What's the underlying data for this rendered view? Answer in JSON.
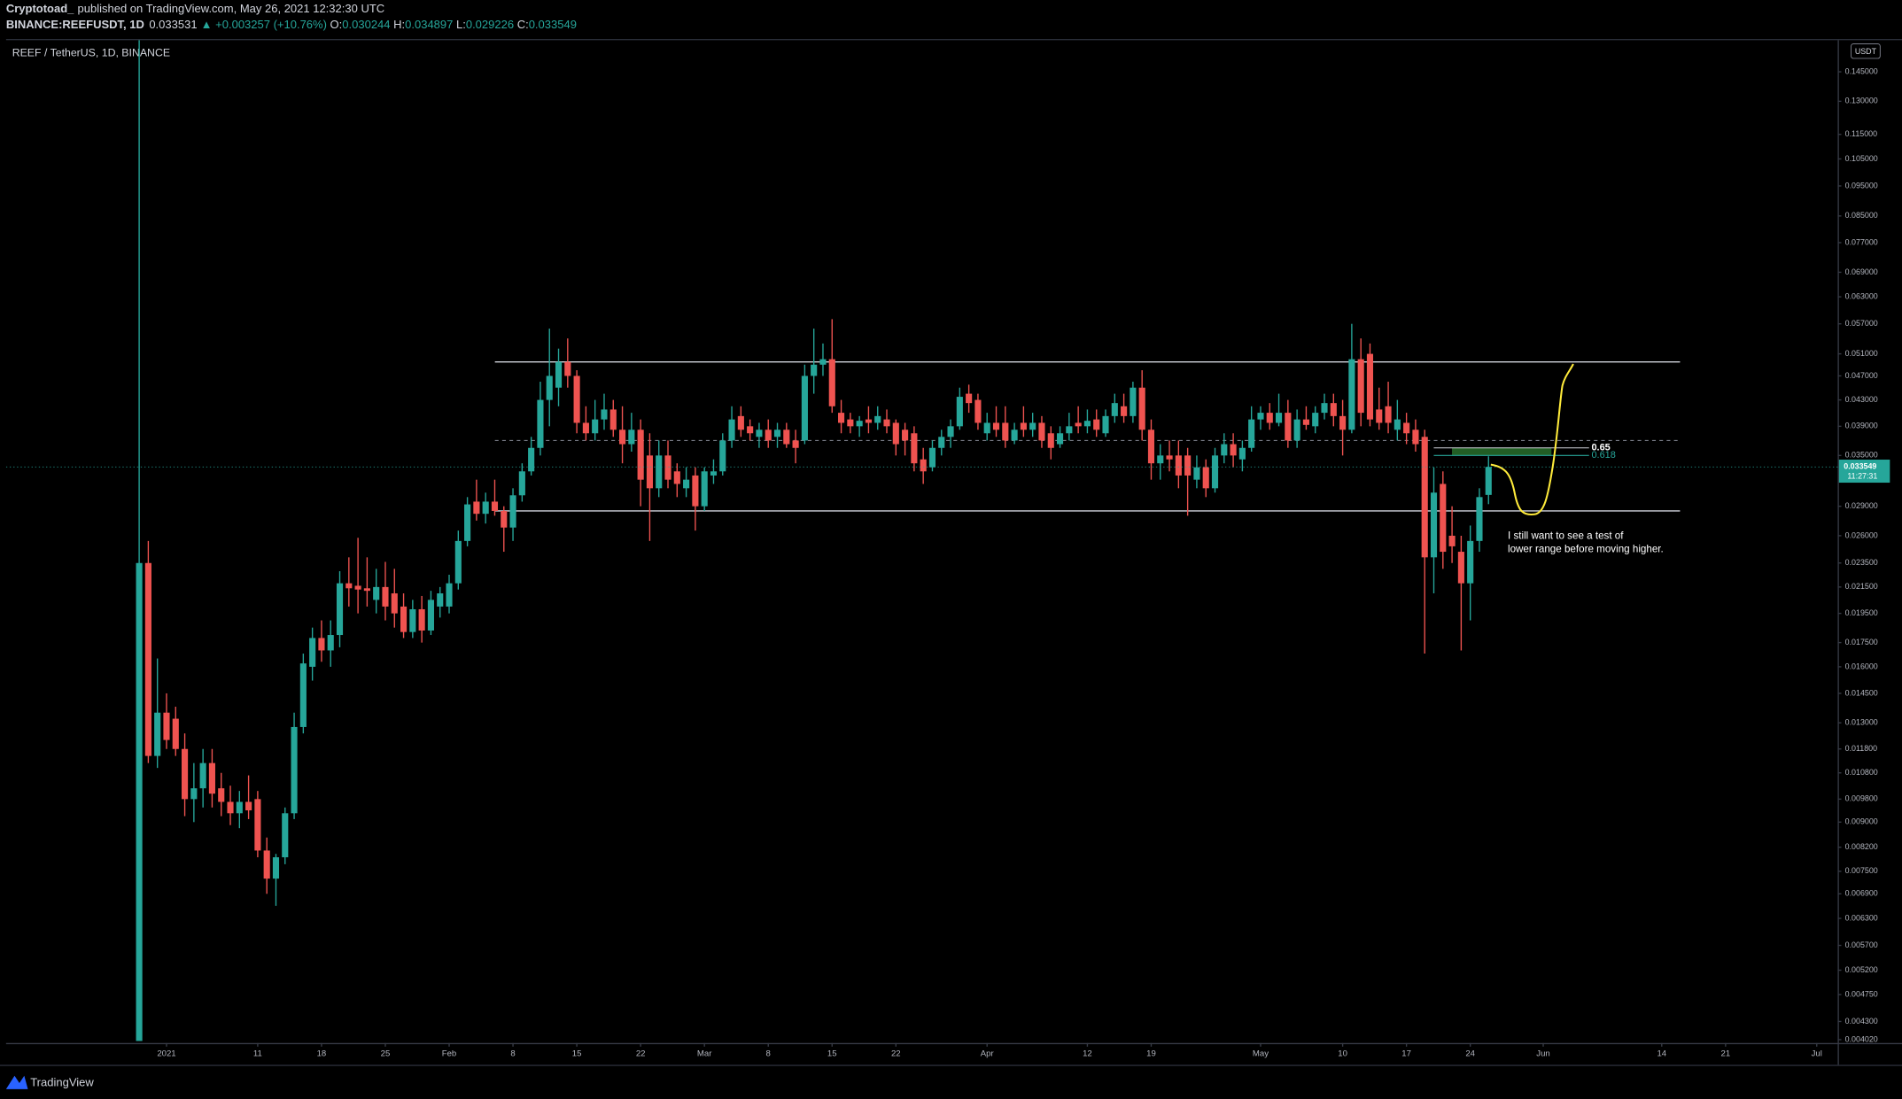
{
  "header": {
    "author": "Cryptotoad_",
    "published": "published on TradingView.com, May 26, 2021 12:32:30 UTC",
    "symbol": "BINANCE:REEFUSDT, 1D",
    "last": "0.033531",
    "change": "▲ +0.003257 (+10.76%)",
    "ohlc": [
      {
        "k": "O:",
        "v": "0.030244"
      },
      {
        "k": "H:",
        "v": "0.034897"
      },
      {
        "k": "L:",
        "v": "0.029226"
      },
      {
        "k": "C:",
        "v": "0.033549"
      }
    ]
  },
  "footer": {
    "brand": "TradingView"
  },
  "chart_data": {
    "type": "candlestick",
    "title": "REEF / TetherUS, 1D, BINANCE",
    "currency": "USDT",
    "up_color": "#26a69a",
    "down_color": "#ef5350",
    "log_scale": true,
    "grid": false,
    "xlim": [
      -16.6,
      184.3
    ],
    "ylim": [
      0.00397,
      0.163
    ],
    "xticks": [
      {
        "value": 1,
        "label": "2021"
      },
      11,
      18,
      25,
      {
        "value": 32,
        "label": "Feb"
      },
      {
        "value": 39,
        "label": "8"
      },
      {
        "value": 46,
        "label": "15"
      },
      {
        "value": 53,
        "label": "22"
      },
      {
        "value": 60,
        "label": "Mar"
      },
      {
        "value": 67,
        "label": "8"
      },
      {
        "value": 74,
        "label": "15"
      },
      {
        "value": 81,
        "label": "22"
      },
      {
        "value": 91,
        "label": "Apr"
      },
      {
        "value": 102,
        "label": "12"
      },
      {
        "value": 109,
        "label": "19"
      },
      {
        "value": 121,
        "label": "May"
      },
      {
        "value": 130,
        "label": "10"
      },
      {
        "value": 137,
        "label": "17"
      },
      {
        "value": 144,
        "label": "24"
      },
      {
        "value": 152,
        "label": "Jun"
      },
      {
        "value": 165,
        "label": "14"
      },
      {
        "value": 172,
        "label": "21"
      },
      {
        "value": 182,
        "label": "Jul"
      }
    ],
    "yticks": [
      {
        "value": 0.145,
        "label": "0.145000"
      },
      {
        "value": 0.13,
        "label": "0.130000"
      },
      {
        "value": 0.115,
        "label": "0.115000"
      },
      {
        "value": 0.105,
        "label": "0.105000"
      },
      {
        "value": 0.095,
        "label": "0.095000"
      },
      {
        "value": 0.085,
        "label": "0.085000"
      },
      {
        "value": 0.077,
        "label": "0.077000"
      },
      {
        "value": 0.069,
        "label": "0.069000"
      },
      {
        "value": 0.063,
        "label": "0.063000"
      },
      {
        "value": 0.057,
        "label": "0.057000"
      },
      {
        "value": 0.051,
        "label": "0.051000"
      },
      {
        "value": 0.047,
        "label": "0.047000"
      },
      {
        "value": 0.043,
        "label": "0.043000"
      },
      {
        "value": 0.039,
        "label": "0.039000"
      },
      {
        "value": 0.035,
        "label": "0.035000"
      },
      {
        "value": 0.029,
        "label": "0.029000"
      },
      {
        "value": 0.026,
        "label": "0.026000"
      },
      {
        "value": 0.0235,
        "label": "0.023500"
      },
      {
        "value": 0.0215,
        "label": "0.021500"
      },
      {
        "value": 0.0195,
        "label": "0.019500"
      },
      {
        "value": 0.0175,
        "label": "0.017500"
      },
      {
        "value": 0.016,
        "label": "0.016000"
      },
      {
        "value": 0.0145,
        "label": "0.014500"
      },
      {
        "value": 0.013,
        "label": "0.013000"
      },
      {
        "value": 0.0118,
        "label": "0.011800"
      },
      {
        "value": 0.0108,
        "label": "0.010800"
      },
      {
        "value": 0.0098,
        "label": "0.009800"
      },
      {
        "value": 0.009,
        "label": "0.009000"
      },
      {
        "value": 0.0082,
        "label": "0.008200"
      },
      {
        "value": 0.0075,
        "label": "0.007500"
      },
      {
        "value": 0.0069,
        "label": "0.006900"
      },
      {
        "value": 0.0063,
        "label": "0.006300"
      },
      {
        "value": 0.0057,
        "label": "0.005700"
      },
      {
        "value": 0.0052,
        "label": "0.005200"
      },
      {
        "value": 0.00475,
        "label": "0.004750"
      },
      {
        "value": 0.0043,
        "label": "0.004300"
      },
      {
        "value": 0.00402,
        "label": "0.004020"
      }
    ],
    "x": [
      -2,
      -1,
      0,
      1,
      2,
      3,
      4,
      5,
      6,
      7,
      8,
      9,
      10,
      11,
      12,
      13,
      14,
      15,
      16,
      17,
      18,
      19,
      20,
      21,
      22,
      23,
      24,
      25,
      26,
      27,
      28,
      29,
      30,
      31,
      32,
      33,
      34,
      35,
      36,
      37,
      38,
      39,
      40,
      41,
      42,
      43,
      44,
      45,
      46,
      47,
      48,
      49,
      50,
      51,
      52,
      53,
      54,
      55,
      56,
      57,
      58,
      59,
      60,
      61,
      62,
      63,
      64,
      65,
      66,
      67,
      68,
      69,
      70,
      71,
      72,
      73,
      74,
      75,
      76,
      77,
      78,
      79,
      80,
      81,
      82,
      83,
      84,
      85,
      86,
      87,
      88,
      89,
      90,
      91,
      92,
      93,
      94,
      95,
      96,
      97,
      98,
      99,
      100,
      101,
      102,
      103,
      104,
      105,
      106,
      107,
      108,
      109,
      110,
      111,
      112,
      113,
      114,
      115,
      116,
      117,
      118,
      119,
      120,
      121,
      122,
      123,
      124,
      125,
      126,
      127,
      128,
      129,
      130,
      131,
      132,
      133,
      134,
      135,
      136,
      137,
      138,
      139,
      140,
      141,
      142,
      143,
      144,
      145,
      146
    ],
    "ohlc": [
      [
        0.004,
        0.2,
        0.004,
        0.0235
      ],
      [
        0.0235,
        0.0255,
        0.0112,
        0.0115
      ],
      [
        0.0115,
        0.0165,
        0.011,
        0.0135
      ],
      [
        0.0135,
        0.0145,
        0.0118,
        0.0122
      ],
      [
        0.0132,
        0.0138,
        0.0115,
        0.0118
      ],
      [
        0.0118,
        0.0125,
        0.0092,
        0.0098
      ],
      [
        0.0098,
        0.0112,
        0.009,
        0.0102
      ],
      [
        0.0102,
        0.0118,
        0.0095,
        0.0112
      ],
      [
        0.0112,
        0.0118,
        0.0095,
        0.01
      ],
      [
        0.0102,
        0.0108,
        0.0092,
        0.0097
      ],
      [
        0.0097,
        0.0103,
        0.0089,
        0.0093
      ],
      [
        0.0093,
        0.0101,
        0.0088,
        0.0097
      ],
      [
        0.0097,
        0.0107,
        0.0091,
        0.0094
      ],
      [
        0.0098,
        0.0101,
        0.0079,
        0.0081
      ],
      [
        0.0081,
        0.0085,
        0.0069,
        0.0073
      ],
      [
        0.0073,
        0.008,
        0.0066,
        0.0079
      ],
      [
        0.0079,
        0.0095,
        0.0077,
        0.0093
      ],
      [
        0.0093,
        0.0135,
        0.0091,
        0.0128
      ],
      [
        0.0128,
        0.0168,
        0.0125,
        0.0162
      ],
      [
        0.016,
        0.0185,
        0.0152,
        0.0178
      ],
      [
        0.0178,
        0.019,
        0.0163,
        0.017
      ],
      [
        0.017,
        0.019,
        0.016,
        0.018
      ],
      [
        0.018,
        0.0228,
        0.0172,
        0.0218
      ],
      [
        0.0218,
        0.024,
        0.02,
        0.0214
      ],
      [
        0.0216,
        0.0258,
        0.0195,
        0.0213
      ],
      [
        0.0214,
        0.024,
        0.02,
        0.0212
      ],
      [
        0.0205,
        0.023,
        0.0195,
        0.0215
      ],
      [
        0.0215,
        0.0236,
        0.019,
        0.02
      ],
      [
        0.021,
        0.023,
        0.0185,
        0.0195
      ],
      [
        0.02,
        0.021,
        0.0178,
        0.0182
      ],
      [
        0.0182,
        0.0205,
        0.0178,
        0.0198
      ],
      [
        0.0198,
        0.0208,
        0.0175,
        0.0183
      ],
      [
        0.0183,
        0.0212,
        0.018,
        0.0205
      ],
      [
        0.02,
        0.0215,
        0.0192,
        0.021
      ],
      [
        0.02,
        0.0225,
        0.0195,
        0.0218
      ],
      [
        0.0218,
        0.0265,
        0.0213,
        0.0255
      ],
      [
        0.0255,
        0.03,
        0.025,
        0.0292
      ],
      [
        0.0295,
        0.032,
        0.0275,
        0.0282
      ],
      [
        0.0282,
        0.0305,
        0.0272,
        0.0295
      ],
      [
        0.0295,
        0.032,
        0.028,
        0.0285
      ],
      [
        0.0285,
        0.029,
        0.0245,
        0.0268
      ],
      [
        0.0268,
        0.031,
        0.0255,
        0.0302
      ],
      [
        0.0302,
        0.034,
        0.0295,
        0.033
      ],
      [
        0.033,
        0.0375,
        0.0325,
        0.036
      ],
      [
        0.036,
        0.046,
        0.035,
        0.043
      ],
      [
        0.043,
        0.056,
        0.039,
        0.047
      ],
      [
        0.045,
        0.052,
        0.042,
        0.0495
      ],
      [
        0.0495,
        0.054,
        0.045,
        0.047
      ],
      [
        0.047,
        0.048,
        0.038,
        0.0395
      ],
      [
        0.0395,
        0.042,
        0.037,
        0.038
      ],
      [
        0.038,
        0.043,
        0.037,
        0.04
      ],
      [
        0.04,
        0.044,
        0.0385,
        0.0415
      ],
      [
        0.0415,
        0.043,
        0.0375,
        0.0385
      ],
      [
        0.0385,
        0.042,
        0.034,
        0.0365
      ],
      [
        0.0365,
        0.041,
        0.0355,
        0.0385
      ],
      [
        0.0385,
        0.04,
        0.029,
        0.032
      ],
      [
        0.035,
        0.038,
        0.0255,
        0.031
      ],
      [
        0.031,
        0.037,
        0.03,
        0.035
      ],
      [
        0.035,
        0.037,
        0.031,
        0.032
      ],
      [
        0.033,
        0.034,
        0.03,
        0.0315
      ],
      [
        0.031,
        0.0335,
        0.03,
        0.032
      ],
      [
        0.0325,
        0.0335,
        0.0265,
        0.029
      ],
      [
        0.029,
        0.0335,
        0.0285,
        0.033
      ],
      [
        0.0325,
        0.0345,
        0.0315,
        0.033
      ],
      [
        0.033,
        0.038,
        0.0325,
        0.037
      ],
      [
        0.037,
        0.042,
        0.036,
        0.04
      ],
      [
        0.0405,
        0.042,
        0.0375,
        0.0385
      ],
      [
        0.039,
        0.04,
        0.037,
        0.038
      ],
      [
        0.0375,
        0.0395,
        0.036,
        0.0385
      ],
      [
        0.0385,
        0.04,
        0.036,
        0.037
      ],
      [
        0.0375,
        0.0395,
        0.036,
        0.0385
      ],
      [
        0.0385,
        0.0395,
        0.036,
        0.0365
      ],
      [
        0.037,
        0.0385,
        0.034,
        0.036
      ],
      [
        0.037,
        0.049,
        0.0365,
        0.047
      ],
      [
        0.047,
        0.056,
        0.044,
        0.049
      ],
      [
        0.049,
        0.053,
        0.047,
        0.05
      ],
      [
        0.05,
        0.058,
        0.041,
        0.042
      ],
      [
        0.041,
        0.043,
        0.038,
        0.0395
      ],
      [
        0.04,
        0.041,
        0.038,
        0.039
      ],
      [
        0.039,
        0.0405,
        0.0375,
        0.0398
      ],
      [
        0.04,
        0.042,
        0.038,
        0.0395
      ],
      [
        0.0395,
        0.042,
        0.0385,
        0.0405
      ],
      [
        0.04,
        0.0415,
        0.038,
        0.039
      ],
      [
        0.0395,
        0.04,
        0.035,
        0.0365
      ],
      [
        0.0385,
        0.0395,
        0.035,
        0.037
      ],
      [
        0.038,
        0.039,
        0.033,
        0.034
      ],
      [
        0.0345,
        0.036,
        0.0315,
        0.033
      ],
      [
        0.0335,
        0.037,
        0.033,
        0.036
      ],
      [
        0.036,
        0.0385,
        0.035,
        0.0375
      ],
      [
        0.0375,
        0.04,
        0.036,
        0.039
      ],
      [
        0.039,
        0.045,
        0.0385,
        0.0435
      ],
      [
        0.044,
        0.0455,
        0.041,
        0.0425
      ],
      [
        0.043,
        0.044,
        0.0385,
        0.0395
      ],
      [
        0.038,
        0.041,
        0.037,
        0.0395
      ],
      [
        0.0395,
        0.042,
        0.0375,
        0.0385
      ],
      [
        0.0395,
        0.042,
        0.036,
        0.037
      ],
      [
        0.037,
        0.0395,
        0.0365,
        0.0385
      ],
      [
        0.0395,
        0.042,
        0.0375,
        0.0385
      ],
      [
        0.0385,
        0.041,
        0.0375,
        0.0395
      ],
      [
        0.0395,
        0.0405,
        0.036,
        0.037
      ],
      [
        0.038,
        0.039,
        0.0345,
        0.036
      ],
      [
        0.0365,
        0.039,
        0.036,
        0.038
      ],
      [
        0.038,
        0.041,
        0.037,
        0.039
      ],
      [
        0.0395,
        0.042,
        0.038,
        0.039
      ],
      [
        0.039,
        0.0415,
        0.038,
        0.0398
      ],
      [
        0.04,
        0.0415,
        0.0375,
        0.0385
      ],
      [
        0.038,
        0.0415,
        0.0375,
        0.0405
      ],
      [
        0.0405,
        0.044,
        0.0395,
        0.0425
      ],
      [
        0.042,
        0.044,
        0.0395,
        0.0405
      ],
      [
        0.0405,
        0.046,
        0.0395,
        0.045
      ],
      [
        0.045,
        0.048,
        0.037,
        0.0385
      ],
      [
        0.0385,
        0.04,
        0.032,
        0.034
      ],
      [
        0.034,
        0.0365,
        0.032,
        0.035
      ],
      [
        0.035,
        0.037,
        0.033,
        0.0345
      ],
      [
        0.035,
        0.037,
        0.031,
        0.0325
      ],
      [
        0.035,
        0.036,
        0.028,
        0.0325
      ],
      [
        0.032,
        0.035,
        0.031,
        0.0335
      ],
      [
        0.0335,
        0.0345,
        0.03,
        0.031
      ],
      [
        0.031,
        0.036,
        0.0305,
        0.035
      ],
      [
        0.035,
        0.038,
        0.034,
        0.0365
      ],
      [
        0.0365,
        0.038,
        0.0335,
        0.035
      ],
      [
        0.0345,
        0.037,
        0.033,
        0.036
      ],
      [
        0.036,
        0.042,
        0.0355,
        0.04
      ],
      [
        0.04,
        0.042,
        0.0385,
        0.041
      ],
      [
        0.041,
        0.0425,
        0.0385,
        0.0395
      ],
      [
        0.0395,
        0.044,
        0.039,
        0.041
      ],
      [
        0.041,
        0.043,
        0.036,
        0.037
      ],
      [
        0.037,
        0.0415,
        0.036,
        0.04
      ],
      [
        0.04,
        0.042,
        0.0385,
        0.0392
      ],
      [
        0.039,
        0.042,
        0.038,
        0.041
      ],
      [
        0.041,
        0.044,
        0.04,
        0.0425
      ],
      [
        0.0425,
        0.044,
        0.039,
        0.0405
      ],
      [
        0.0405,
        0.043,
        0.035,
        0.0385
      ],
      [
        0.0385,
        0.057,
        0.038,
        0.05
      ],
      [
        0.05,
        0.054,
        0.039,
        0.041
      ],
      [
        0.051,
        0.053,
        0.039,
        0.04
      ],
      [
        0.0415,
        0.045,
        0.0385,
        0.0395
      ],
      [
        0.042,
        0.046,
        0.038,
        0.0395
      ],
      [
        0.0385,
        0.043,
        0.037,
        0.04
      ],
      [
        0.0395,
        0.041,
        0.0365,
        0.038
      ],
      [
        0.0385,
        0.04,
        0.0355,
        0.0365
      ],
      [
        0.0375,
        0.0385,
        0.0168,
        0.024
      ],
      [
        0.024,
        0.0335,
        0.021,
        0.0305
      ],
      [
        0.0315,
        0.033,
        0.023,
        0.0245
      ],
      [
        0.026,
        0.029,
        0.0235,
        0.025
      ],
      [
        0.0245,
        0.026,
        0.017,
        0.0218
      ],
      [
        0.0218,
        0.027,
        0.019,
        0.0255
      ],
      [
        0.0255,
        0.031,
        0.0245,
        0.03
      ],
      [
        0.030244,
        0.034897,
        0.029226,
        0.033549
      ]
    ],
    "range_lines": [
      0.0495,
      0.0285
    ],
    "mid_line": 0.037,
    "fib_levels": [
      {
        "value": 0.036,
        "label": "0.65"
      },
      {
        "value": 0.035,
        "label": "0.618"
      }
    ],
    "last_price": 0.033549,
    "countdown": "11:27:31",
    "annotation": [
      "I still want to see a test of",
      "lower range before moving higher."
    ]
  }
}
